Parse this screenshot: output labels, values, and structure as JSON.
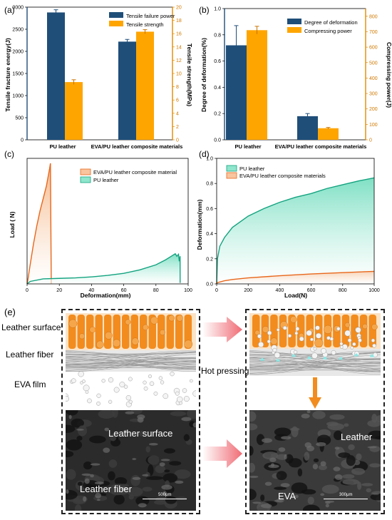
{
  "panels": {
    "a": {
      "letter": "(a)"
    },
    "b": {
      "letter": "(b)"
    },
    "c": {
      "letter": "(c)"
    },
    "d": {
      "letter": "(d)"
    },
    "e": {
      "letter": "(e)"
    }
  },
  "chart_data": [
    {
      "id": "a",
      "type": "bar",
      "categories": [
        "PU leather",
        "EVA/PU leather composite materials"
      ],
      "series": [
        {
          "name": "Tensile failure power",
          "axis": "left",
          "values": [
            2880,
            2220
          ],
          "errors": [
            60,
            50
          ],
          "color": "#1f4e79"
        },
        {
          "name": "Tensile strength",
          "axis": "right",
          "values": [
            8.7,
            16.3
          ],
          "errors": [
            0.35,
            0.3
          ],
          "color": "#ffa500"
        }
      ],
      "ylabel": "Tensile fracture energy(J)",
      "ylim": [
        0,
        3000
      ],
      "yticks": [
        "0",
        "500",
        "1000",
        "1500",
        "2000",
        "2500",
        "3000"
      ],
      "y2label": "Tensile strength(MPa)",
      "y2lim": [
        0,
        20
      ],
      "y2ticks": [
        "0",
        "2",
        "4",
        "6",
        "8",
        "10",
        "12",
        "14",
        "16",
        "18",
        "20"
      ],
      "legend": "top-right"
    },
    {
      "id": "b",
      "type": "bar",
      "categories": [
        "PU leather",
        "EVA/PU leather composite materials"
      ],
      "series": [
        {
          "name": "Degree of deformation",
          "axis": "left",
          "values": [
            0.72,
            0.18
          ],
          "errors": [
            0.15,
            0.02
          ],
          "color": "#1f4e79"
        },
        {
          "name": "Compressing power",
          "axis": "right",
          "values": [
            710,
            75
          ],
          "errors": [
            25,
            5
          ],
          "color": "#ffa500"
        }
      ],
      "ylabel": "Degree of deformation(%)",
      "ylim": [
        0,
        1.0
      ],
      "yticks": [
        "0.0",
        "0.2",
        "0.4",
        "0.6",
        "0.8",
        "1.0"
      ],
      "y2label": "Compressing power(J)",
      "y2lim": [
        0,
        850
      ],
      "y2ticks": [
        "0",
        "100",
        "200",
        "300",
        "400",
        "500",
        "600",
        "700",
        "800"
      ],
      "legend": "top-right"
    },
    {
      "id": "c",
      "type": "area",
      "series": [
        {
          "name": "EVA/PU leather composite material",
          "color": "#e8671c",
          "fill": "#f5b88a",
          "x": [
            0,
            0.5,
            2,
            4,
            6,
            8,
            10,
            12,
            14,
            14.5,
            15,
            15
          ],
          "y": [
            0,
            8,
            40,
            80,
            115,
            145,
            170,
            195,
            230,
            240,
            5,
            0
          ]
        },
        {
          "name": "PU leather",
          "color": "#13a37f",
          "fill": "#7fe0c4",
          "x": [
            0,
            2,
            10,
            20,
            30,
            40,
            50,
            60,
            70,
            80,
            86,
            90,
            92,
            93,
            94,
            94.5,
            95,
            95
          ],
          "y": [
            0,
            5,
            10,
            11,
            12,
            14,
            17,
            21,
            28,
            38,
            48,
            56,
            60,
            55,
            59,
            45,
            55,
            2
          ]
        }
      ],
      "xlabel": "Deformation(mm)",
      "ylabel": "Load ( N)",
      "xlim": [
        0,
        100
      ],
      "xticks": [
        "0",
        "20",
        "40",
        "60",
        "80",
        "100"
      ],
      "ylim": [
        0,
        250
      ],
      "legend": "top-center"
    },
    {
      "id": "d",
      "type": "area",
      "series": [
        {
          "name": "PU leather",
          "color": "#13a37f",
          "fill": "#7fe0c4",
          "x": [
            0,
            5,
            20,
            50,
            100,
            200,
            300,
            400,
            500,
            600,
            700,
            800,
            900,
            1000
          ],
          "y": [
            0,
            0.2,
            0.3,
            0.37,
            0.45,
            0.54,
            0.6,
            0.65,
            0.69,
            0.72,
            0.76,
            0.79,
            0.82,
            0.845
          ]
        },
        {
          "name": "EVA/PU leather composite materials",
          "color": "#e8671c",
          "fill": "#f8d3b6",
          "x": [
            0,
            5,
            50,
            100,
            200,
            400,
            600,
            800,
            1000
          ],
          "y": [
            0,
            0.01,
            0.025,
            0.035,
            0.048,
            0.065,
            0.079,
            0.09,
            0.1
          ]
        }
      ],
      "xlabel": "Load(N)",
      "ylabel": "Deformation(mm)",
      "xlim": [
        0,
        1000
      ],
      "xticks": [
        "0",
        "200",
        "400",
        "600",
        "800",
        "1000"
      ],
      "ylim": [
        0,
        1.0
      ],
      "yticks": [
        "0.0",
        "0.2",
        "0.4",
        "0.6",
        "0.8",
        "1.0"
      ],
      "legend": "top-left"
    }
  ],
  "schematic": {
    "labels": {
      "leather_surface": "Leather surface",
      "leather_fiber": "Leather fiber",
      "eva_film": "EVA film",
      "hot_pressing": "Hot pressing"
    },
    "sem_left": {
      "label1": "Leather surface",
      "label2": "Leather fiber",
      "scale": "500μm"
    },
    "sem_right": {
      "label1": "Leather",
      "label2": "EVA",
      "scale": "300μm"
    },
    "colors": {
      "orange": "#f28c1e",
      "arrow": "#f06b74",
      "teal": "#8de8e6"
    }
  }
}
